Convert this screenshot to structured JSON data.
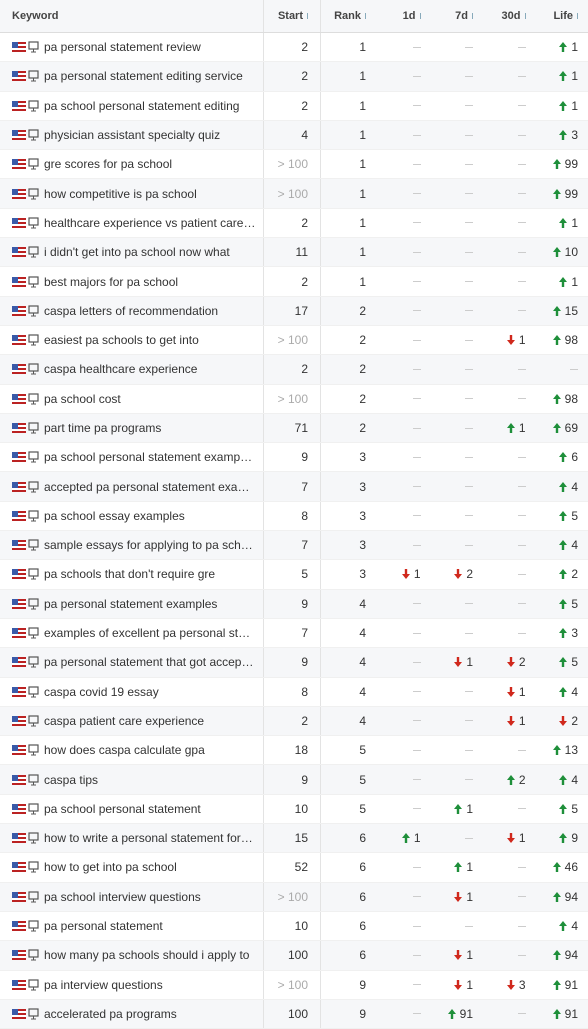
{
  "table": {
    "columns": [
      "Keyword",
      "Start",
      "Rank",
      "1d",
      "7d",
      "30d",
      "Life"
    ],
    "rows": [
      {
        "keyword": "pa personal statement review",
        "start": 2,
        "rank": 1,
        "d1": null,
        "d7": null,
        "d30": null,
        "life": {
          "direction": "up",
          "value": 1
        }
      },
      {
        "keyword": "pa personal statement editing service",
        "start": 2,
        "rank": 1,
        "d1": null,
        "d7": null,
        "d30": null,
        "life": {
          "direction": "up",
          "value": 1
        }
      },
      {
        "keyword": "pa school personal statement editing",
        "start": 2,
        "rank": 1,
        "d1": null,
        "d7": null,
        "d30": null,
        "life": {
          "direction": "up",
          "value": 1
        }
      },
      {
        "keyword": "physician assistant specialty quiz",
        "start": 4,
        "rank": 1,
        "d1": null,
        "d7": null,
        "d30": null,
        "life": {
          "direction": "up",
          "value": 3
        }
      },
      {
        "keyword": "gre scores for pa school",
        "start": "> 100",
        "rank": 1,
        "d1": null,
        "d7": null,
        "d30": null,
        "life": {
          "direction": "up",
          "value": 99
        }
      },
      {
        "keyword": "how competitive is pa school",
        "start": "> 100",
        "rank": 1,
        "d1": null,
        "d7": null,
        "d30": null,
        "life": {
          "direction": "up",
          "value": 99
        }
      },
      {
        "keyword": "healthcare experience vs patient care…",
        "start": 2,
        "rank": 1,
        "d1": null,
        "d7": null,
        "d30": null,
        "life": {
          "direction": "up",
          "value": 1
        }
      },
      {
        "keyword": "i didn't get into pa school now what",
        "start": 11,
        "rank": 1,
        "d1": null,
        "d7": null,
        "d30": null,
        "life": {
          "direction": "up",
          "value": 10
        }
      },
      {
        "keyword": "best majors for pa school",
        "start": 2,
        "rank": 1,
        "d1": null,
        "d7": null,
        "d30": null,
        "life": {
          "direction": "up",
          "value": 1
        }
      },
      {
        "keyword": "caspa letters of recommendation",
        "start": 17,
        "rank": 2,
        "d1": null,
        "d7": null,
        "d30": null,
        "life": {
          "direction": "up",
          "value": 15
        }
      },
      {
        "keyword": "easiest pa schools to get into",
        "start": "> 100",
        "rank": 2,
        "d1": null,
        "d7": null,
        "d30": {
          "direction": "down",
          "value": 1
        },
        "life": {
          "direction": "up",
          "value": 98
        }
      },
      {
        "keyword": "caspa healthcare experience",
        "start": 2,
        "rank": 2,
        "d1": null,
        "d7": null,
        "d30": null,
        "life": null
      },
      {
        "keyword": "pa school cost",
        "start": "> 100",
        "rank": 2,
        "d1": null,
        "d7": null,
        "d30": null,
        "life": {
          "direction": "up",
          "value": 98
        }
      },
      {
        "keyword": "part time pa programs",
        "start": 71,
        "rank": 2,
        "d1": null,
        "d7": null,
        "d30": {
          "direction": "up",
          "value": 1
        },
        "life": {
          "direction": "up",
          "value": 69
        }
      },
      {
        "keyword": "pa school personal statement examp…",
        "start": 9,
        "rank": 3,
        "d1": null,
        "d7": null,
        "d30": null,
        "life": {
          "direction": "up",
          "value": 6
        }
      },
      {
        "keyword": "accepted pa personal statement exa…",
        "start": 7,
        "rank": 3,
        "d1": null,
        "d7": null,
        "d30": null,
        "life": {
          "direction": "up",
          "value": 4
        }
      },
      {
        "keyword": "pa school essay examples",
        "start": 8,
        "rank": 3,
        "d1": null,
        "d7": null,
        "d30": null,
        "life": {
          "direction": "up",
          "value": 5
        }
      },
      {
        "keyword": "sample essays for applying to pa sch…",
        "start": 7,
        "rank": 3,
        "d1": null,
        "d7": null,
        "d30": null,
        "life": {
          "direction": "up",
          "value": 4
        }
      },
      {
        "keyword": "pa schools that don't require gre",
        "start": 5,
        "rank": 3,
        "d1": {
          "direction": "down",
          "value": 1
        },
        "d7": {
          "direction": "down",
          "value": 2
        },
        "d30": null,
        "life": {
          "direction": "up",
          "value": 2
        }
      },
      {
        "keyword": "pa personal statement examples",
        "start": 9,
        "rank": 4,
        "d1": null,
        "d7": null,
        "d30": null,
        "life": {
          "direction": "up",
          "value": 5
        }
      },
      {
        "keyword": "examples of excellent pa personal st…",
        "start": 7,
        "rank": 4,
        "d1": null,
        "d7": null,
        "d30": null,
        "life": {
          "direction": "up",
          "value": 3
        }
      },
      {
        "keyword": "pa personal statement that got accep…",
        "start": 9,
        "rank": 4,
        "d1": null,
        "d7": {
          "direction": "down",
          "value": 1
        },
        "d30": {
          "direction": "down",
          "value": 2
        },
        "life": {
          "direction": "up",
          "value": 5
        }
      },
      {
        "keyword": "caspa covid 19 essay",
        "start": 8,
        "rank": 4,
        "d1": null,
        "d7": null,
        "d30": {
          "direction": "down",
          "value": 1
        },
        "life": {
          "direction": "up",
          "value": 4
        }
      },
      {
        "keyword": "caspa patient care experience",
        "start": 2,
        "rank": 4,
        "d1": null,
        "d7": null,
        "d30": {
          "direction": "down",
          "value": 1
        },
        "life": {
          "direction": "down",
          "value": 2
        }
      },
      {
        "keyword": "how does caspa calculate gpa",
        "start": 18,
        "rank": 5,
        "d1": null,
        "d7": null,
        "d30": null,
        "life": {
          "direction": "up",
          "value": 13
        }
      },
      {
        "keyword": "caspa tips",
        "start": 9,
        "rank": 5,
        "d1": null,
        "d7": null,
        "d30": {
          "direction": "up",
          "value": 2
        },
        "life": {
          "direction": "up",
          "value": 4
        }
      },
      {
        "keyword": "pa school personal statement",
        "start": 10,
        "rank": 5,
        "d1": null,
        "d7": {
          "direction": "up",
          "value": 1
        },
        "d30": null,
        "life": {
          "direction": "up",
          "value": 5
        }
      },
      {
        "keyword": "how to write a personal statement for…",
        "start": 15,
        "rank": 6,
        "d1": {
          "direction": "up",
          "value": 1
        },
        "d7": null,
        "d30": {
          "direction": "down",
          "value": 1
        },
        "life": {
          "direction": "up",
          "value": 9
        }
      },
      {
        "keyword": "how to get into pa school",
        "start": 52,
        "rank": 6,
        "d1": null,
        "d7": {
          "direction": "up",
          "value": 1
        },
        "d30": null,
        "life": {
          "direction": "up",
          "value": 46
        }
      },
      {
        "keyword": "pa school interview questions",
        "start": "> 100",
        "rank": 6,
        "d1": null,
        "d7": {
          "direction": "down",
          "value": 1
        },
        "d30": null,
        "life": {
          "direction": "up",
          "value": 94
        }
      },
      {
        "keyword": "pa personal statement",
        "start": 10,
        "rank": 6,
        "d1": null,
        "d7": null,
        "d30": null,
        "life": {
          "direction": "up",
          "value": 4
        }
      },
      {
        "keyword": "how many pa schools should i apply to",
        "start": 100,
        "rank": 6,
        "d1": null,
        "d7": {
          "direction": "down",
          "value": 1
        },
        "d30": null,
        "life": {
          "direction": "up",
          "value": 94
        }
      },
      {
        "keyword": "pa interview questions",
        "start": "> 100",
        "rank": 9,
        "d1": null,
        "d7": {
          "direction": "down",
          "value": 1
        },
        "d30": {
          "direction": "down",
          "value": 3
        },
        "life": {
          "direction": "up",
          "value": 91
        }
      },
      {
        "keyword": "accelerated pa programs",
        "start": 100,
        "rank": 9,
        "d1": null,
        "d7": {
          "direction": "up",
          "value": 91
        },
        "d30": null,
        "life": {
          "direction": "up",
          "value": 91
        }
      }
    ]
  }
}
